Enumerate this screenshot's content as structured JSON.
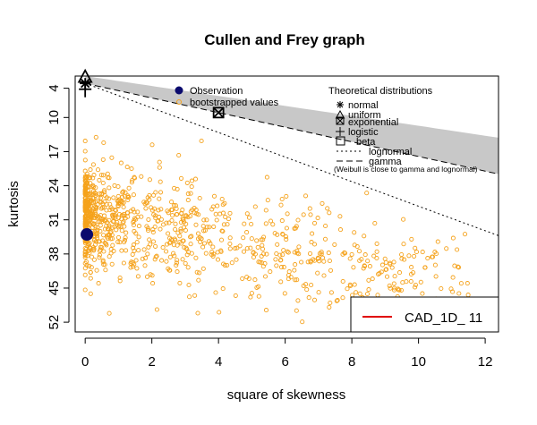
{
  "chart_data": {
    "type": "scatter",
    "title": "Cullen and Frey graph",
    "xlabel": "square of skewness",
    "ylabel": "kurtosis",
    "xlim": [
      -0.3,
      12.4
    ],
    "ylim_reversed": [
      54,
      1.5
    ],
    "x_ticks": [
      0,
      2,
      4,
      6,
      8,
      10,
      12
    ],
    "y_ticks": [
      4,
      10,
      17,
      24,
      31,
      38,
      45,
      52
    ],
    "observation": {
      "x": 0.05,
      "y": 34,
      "color": "#0a0a6e"
    },
    "bootstrap_color": "#f5a21b",
    "bootstrap_summary": {
      "n": 1000,
      "x_range": [
        0,
        11.5
      ],
      "y_range": [
        14,
        53
      ]
    },
    "theoretical": {
      "normal": {
        "x": 0,
        "y": 3
      },
      "uniform": {
        "x": 0,
        "y": 1.8
      },
      "exponential": {
        "x": 4,
        "y": 9
      },
      "logistic": {
        "x": 0,
        "y": 4.2
      }
    },
    "beta_region_color": "#c8c8c8",
    "legend_points": {
      "items": [
        {
          "label": "Observation",
          "symbol": "filled-circle",
          "color": "#0a0a6e"
        },
        {
          "label": "bootstrapped values",
          "symbol": "open-circle",
          "color": "#f5a21b"
        }
      ]
    },
    "legend_distributions": {
      "title": "Theoretical distributions",
      "items": [
        {
          "label": "normal",
          "symbol": "asterisk"
        },
        {
          "label": "uniform",
          "symbol": "triangle"
        },
        {
          "label": "exponential",
          "symbol": "boxed-x"
        },
        {
          "label": "logistic",
          "symbol": "plus"
        },
        {
          "label": "beta",
          "symbol": "square"
        },
        {
          "label": "lognormal",
          "symbol": "dotted-line"
        },
        {
          "label": "gamma",
          "symbol": "dashed-line"
        }
      ],
      "note": "(Weibull is close to gamma and lognormal)"
    },
    "legend_series": {
      "label": "CAD_1D_ 11",
      "color": "#e00000"
    }
  }
}
